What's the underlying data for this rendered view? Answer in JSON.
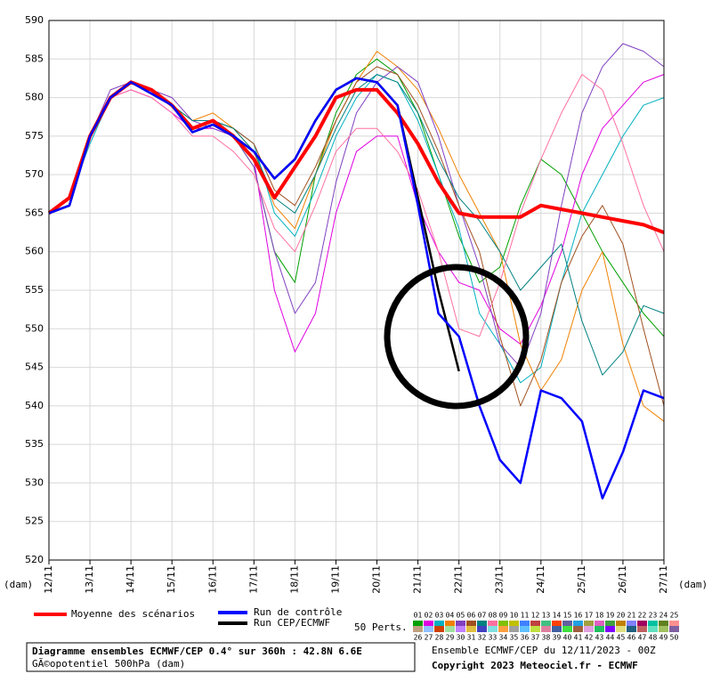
{
  "chart_data": {
    "type": "line",
    "y_unit_left": "(dam)",
    "x_unit_right": "(dam)",
    "ylim": [
      520,
      590
    ],
    "yticks": [
      520,
      525,
      530,
      535,
      540,
      545,
      550,
      555,
      560,
      565,
      570,
      575,
      580,
      585,
      590
    ],
    "xlim": [
      0,
      15
    ],
    "xticks": [
      {
        "value": 0,
        "label": "12/11"
      },
      {
        "value": 1,
        "label": "13/11"
      },
      {
        "value": 2,
        "label": "14/11"
      },
      {
        "value": 3,
        "label": "15/11"
      },
      {
        "value": 4,
        "label": "16/11"
      },
      {
        "value": 5,
        "label": "17/11"
      },
      {
        "value": 6,
        "label": "18/11"
      },
      {
        "value": 7,
        "label": "19/11"
      },
      {
        "value": 8,
        "label": "20/11"
      },
      {
        "value": 9,
        "label": "21/11"
      },
      {
        "value": 10,
        "label": "22/11"
      },
      {
        "value": 11,
        "label": "23/11"
      },
      {
        "value": 12,
        "label": "24/11"
      },
      {
        "value": 13,
        "label": "25/11"
      },
      {
        "value": 14,
        "label": "26/11"
      },
      {
        "value": 15,
        "label": "27/11"
      }
    ],
    "grid": true,
    "x": [
      0,
      0.5,
      1,
      1.5,
      2,
      2.5,
      3,
      3.5,
      4,
      4.5,
      5,
      5.5,
      6,
      6.5,
      7,
      7.5,
      8,
      8.5,
      9,
      9.5,
      10,
      10.5,
      11,
      11.5,
      12,
      12.5,
      13,
      13.5,
      14,
      14.5,
      15
    ],
    "series": [
      {
        "name": "Moyenne des scénarios",
        "color": "#ff0000",
        "width": 4,
        "values": [
          565,
          567,
          575,
          580,
          582,
          581,
          579,
          576,
          577,
          575,
          572,
          567,
          571,
          575,
          580,
          581,
          581,
          578,
          574,
          569,
          565,
          564.5,
          564.5,
          564.5,
          566,
          565.5,
          565,
          564.5,
          564,
          563.5,
          562.5
        ]
      },
      {
        "name": "Run de contrôle",
        "color": "#0000ff",
        "width": 2.5,
        "values": [
          565,
          566,
          575,
          580,
          582,
          580.5,
          579,
          575.5,
          576.5,
          575,
          573,
          569.5,
          572,
          577,
          581,
          582.5,
          582,
          579,
          566,
          552,
          549,
          540,
          533,
          530,
          542,
          541,
          538,
          528,
          534,
          542,
          541
        ]
      },
      {
        "name": "Run CEP/ECMWF",
        "color": "#000000",
        "width": 2.5,
        "values": [
          565,
          566,
          575,
          580,
          582,
          580.5,
          579,
          575.5,
          576.5,
          575,
          573,
          569.5,
          572,
          577,
          581,
          582.5,
          582,
          579,
          567,
          555,
          544.5,
          null,
          null,
          null,
          null,
          null,
          null,
          null,
          null,
          null,
          null
        ]
      }
    ],
    "members_label": "50 Perts.",
    "members": [
      {
        "name": "01",
        "color": "#00a000",
        "values": [
          565,
          567,
          575,
          580,
          582,
          581,
          579,
          577,
          577,
          575,
          571,
          560,
          556,
          570,
          578,
          583,
          585,
          583,
          578,
          570,
          562,
          556,
          558,
          566,
          572,
          570,
          565,
          560,
          556,
          552,
          549
        ]
      },
      {
        "name": "02",
        "color": "#e000e0",
        "values": [
          565,
          567,
          575,
          580,
          581,
          580,
          578,
          576,
          576,
          575,
          572,
          555,
          547,
          552,
          565,
          573,
          575,
          575,
          566,
          560,
          556,
          555,
          550,
          548,
          553,
          560,
          570,
          576,
          579,
          582,
          583
        ]
      },
      {
        "name": "03",
        "color": "#00b0c0",
        "values": [
          565,
          567,
          574,
          580,
          582,
          581,
          579,
          576,
          577,
          576,
          574,
          565,
          562,
          568,
          575,
          580,
          583,
          582,
          577,
          570,
          563,
          552,
          548,
          543,
          545,
          556,
          565,
          570,
          575,
          579,
          580
        ]
      },
      {
        "name": "04",
        "color": "#f08000",
        "values": [
          565,
          567,
          575,
          580,
          582,
          581,
          579,
          577,
          578,
          576,
          573,
          566,
          563,
          570,
          577,
          582,
          586,
          584,
          581,
          576,
          570,
          565,
          560,
          548,
          542,
          546,
          555,
          560,
          548,
          540,
          538
        ]
      },
      {
        "name": "05",
        "color": "#8040c0",
        "values": [
          565,
          567,
          575,
          581,
          582,
          581,
          580,
          577,
          576,
          575,
          571,
          560,
          552,
          556,
          569,
          578,
          582,
          584,
          582,
          575,
          566,
          558,
          548,
          545,
          552,
          566,
          578,
          584,
          587,
          586,
          584
        ]
      },
      {
        "name": "06",
        "color": "#a05020",
        "values": [
          565,
          567,
          575,
          580,
          582,
          581,
          579,
          576,
          577,
          576,
          574,
          568,
          566,
          571,
          577,
          582,
          584,
          583,
          579,
          573,
          566,
          560,
          549,
          540,
          546,
          556,
          562,
          566,
          561,
          550,
          540
        ]
      },
      {
        "name": "07",
        "color": "#008080",
        "values": [
          565,
          567,
          575,
          580,
          582,
          581,
          579,
          577,
          577,
          576,
          573,
          567,
          565,
          570,
          576,
          581,
          583,
          582,
          578,
          572,
          567,
          564,
          560,
          555,
          558,
          561,
          551,
          544,
          547,
          553,
          552
        ]
      },
      {
        "name": "08",
        "color": "#ff70a0",
        "values": [
          565,
          567,
          575,
          580,
          581,
          580,
          578,
          575,
          575,
          573,
          570,
          563,
          560,
          566,
          573,
          576,
          576,
          573,
          568,
          560,
          550,
          549,
          556,
          565,
          572,
          578,
          583,
          581,
          574,
          566,
          560
        ]
      },
      {
        "name": "09",
        "color": "#80c000"
      },
      {
        "name": "10",
        "color": "#c0c000"
      },
      {
        "name": "11",
        "color": "#4080ff"
      },
      {
        "name": "12",
        "color": "#c04040"
      },
      {
        "name": "13",
        "color": "#40c080"
      },
      {
        "name": "14",
        "color": "#ff4000"
      },
      {
        "name": "15",
        "color": "#6060a0"
      },
      {
        "name": "16",
        "color": "#20a0e0"
      },
      {
        "name": "17",
        "color": "#a0a040"
      },
      {
        "name": "18",
        "color": "#e060c0"
      },
      {
        "name": "19",
        "color": "#40a040"
      },
      {
        "name": "20",
        "color": "#c08000"
      },
      {
        "name": "21",
        "color": "#8080ff"
      },
      {
        "name": "22",
        "color": "#a00060"
      },
      {
        "name": "23",
        "color": "#00c0a0"
      },
      {
        "name": "24",
        "color": "#608020"
      },
      {
        "name": "25",
        "color": "#ff9090"
      },
      {
        "name": "26",
        "color": "#c0a080"
      },
      {
        "name": "27",
        "color": "#90c0ff"
      },
      {
        "name": "28",
        "color": "#d04000"
      },
      {
        "name": "29",
        "color": "#a0e0a0"
      },
      {
        "name": "30",
        "color": "#c080ff"
      },
      {
        "name": "31",
        "color": "#e0c040"
      },
      {
        "name": "32",
        "color": "#4040c0"
      },
      {
        "name": "33",
        "color": "#80e0e0"
      },
      {
        "name": "34",
        "color": "#ffa040"
      },
      {
        "name": "35",
        "color": "#a0a0a0"
      },
      {
        "name": "36",
        "color": "#60c0ff"
      },
      {
        "name": "37",
        "color": "#c0e040"
      },
      {
        "name": "38",
        "color": "#e080a0"
      },
      {
        "name": "39",
        "color": "#4060a0"
      },
      {
        "name": "40",
        "color": "#40e040"
      },
      {
        "name": "41",
        "color": "#a06040"
      },
      {
        "name": "42",
        "color": "#e0a0e0"
      },
      {
        "name": "43",
        "color": "#20c060"
      },
      {
        "name": "44",
        "color": "#8000ff"
      },
      {
        "name": "45",
        "color": "#e0e080"
      },
      {
        "name": "46",
        "color": "#206080"
      },
      {
        "name": "47",
        "color": "#c06060"
      },
      {
        "name": "48",
        "color": "#60e0c0"
      },
      {
        "name": "49",
        "color": "#a0c060"
      },
      {
        "name": "50",
        "color": "#8060a0"
      }
    ]
  },
  "footer": {
    "title": "Diagramme ensembles ECMWF/CEP 0.4° sur 360h : 42.8N 6.6E",
    "subtitle": "GÃ©opotentiel 500hPa (dam)",
    "run_info": "Ensemble ECMWF/CEP du 12/11/2023 - 00Z",
    "copyright": "Copyright 2023 Meteociel.fr - ECMWF"
  }
}
